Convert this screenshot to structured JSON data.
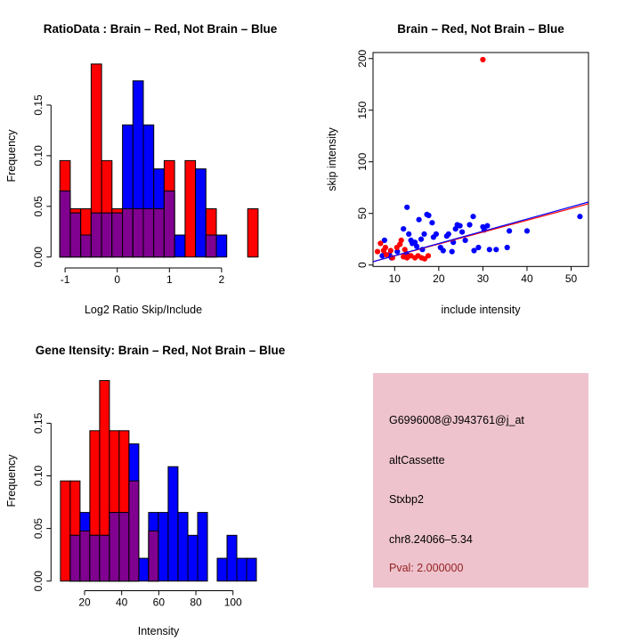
{
  "window": {
    "background": "#ffffff"
  },
  "colors": {
    "brain_red": "#ff0000",
    "not_brain_blue": "#0000ff",
    "overlap_purple": "#800090",
    "axis_black": "#000000",
    "info_background": "#eec3cd",
    "pval_text": "#941f1f"
  },
  "chart_data": [
    {
      "id": "ratio-hist",
      "type": "bar",
      "subtype": "overlaid-histogram",
      "title": "RatioData : Brain – Red, Not Brain – Blue",
      "xlabel": "Log2 Ratio Skip/Include",
      "ylabel": "Frequency",
      "bin_start": -1.1,
      "bin_width": 0.2,
      "xticks": [
        -1,
        0,
        1,
        2
      ],
      "yticks": [
        0,
        0.05,
        0.1,
        0.15
      ],
      "xlim": [
        -1.15,
        2.75
      ],
      "ylim": [
        0,
        0.195
      ],
      "grid": false,
      "series": [
        {
          "name": "Brain",
          "color": "#ff0000",
          "values": [
            0.0952,
            0.0476,
            0.0476,
            0.1905,
            0.0952,
            0.0476,
            0.0476,
            0.0476,
            0.0476,
            0.0476,
            0.0952,
            0,
            0.0952,
            0,
            0.0476,
            0,
            0,
            0,
            0.0476
          ]
        },
        {
          "name": "Not Brain",
          "color": "#0000ff",
          "values": [
            0.0652,
            0.0435,
            0.0217,
            0.0435,
            0.0435,
            0.0435,
            0.1304,
            0.1739,
            0.1304,
            0.087,
            0.0652,
            0.0217,
            0,
            0.087,
            0.0217,
            0.0217,
            0,
            0,
            0
          ]
        }
      ]
    },
    {
      "id": "scatter",
      "type": "scatter",
      "title": "Brain – Red, Not Brain – Blue",
      "xlabel": "include intensity",
      "ylabel": "skip intensity",
      "xticks": [
        10,
        20,
        30,
        40,
        50
      ],
      "yticks": [
        0,
        50,
        100,
        150,
        200
      ],
      "xlim": [
        5,
        54
      ],
      "ylim": [
        0,
        207
      ],
      "grid": false,
      "series": [
        {
          "name": "Brain",
          "color": "#ff0000",
          "points": [
            [
              6.8,
              21
            ],
            [
              6.1,
              13
            ],
            [
              7.9,
              17
            ],
            [
              8.1,
              10
            ],
            [
              9.1,
              14
            ],
            [
              9.5,
              7
            ],
            [
              11.2,
              20
            ],
            [
              11.5,
              24
            ],
            [
              12,
              8
            ],
            [
              12.3,
              15
            ],
            [
              12.8,
              7
            ],
            [
              13.7,
              9
            ],
            [
              14.6,
              7
            ],
            [
              15.3,
              9
            ],
            [
              16.1,
              7
            ],
            [
              16.8,
              6
            ],
            [
              17.6,
              9
            ],
            [
              7.5,
              14
            ],
            [
              13,
              8
            ],
            [
              10.5,
              17
            ],
            [
              30,
              199
            ]
          ]
        },
        {
          "name": "Not Brain",
          "color": "#0000ff",
          "points": [
            [
              7.2,
              9
            ],
            [
              7.7,
              24
            ],
            [
              8.8,
              10
            ],
            [
              9.3,
              7
            ],
            [
              10.6,
              13
            ],
            [
              12,
              35
            ],
            [
              12.7,
              11
            ],
            [
              12.8,
              56
            ],
            [
              13.2,
              30
            ],
            [
              13.7,
              24
            ],
            [
              14,
              21
            ],
            [
              14.6,
              22
            ],
            [
              15,
              18
            ],
            [
              15.5,
              44
            ],
            [
              16,
              25
            ],
            [
              16.3,
              15
            ],
            [
              16.7,
              30
            ],
            [
              17.3,
              49
            ],
            [
              17.7,
              48
            ],
            [
              18.5,
              41
            ],
            [
              18.8,
              27
            ],
            [
              19.4,
              30
            ],
            [
              20.4,
              17
            ],
            [
              21,
              14
            ],
            [
              21.8,
              28
            ],
            [
              22.2,
              30
            ],
            [
              23,
              13
            ],
            [
              23.3,
              22
            ],
            [
              23.8,
              35
            ],
            [
              24.2,
              39
            ],
            [
              24.8,
              38
            ],
            [
              25.3,
              32
            ],
            [
              26,
              24
            ],
            [
              27,
              39
            ],
            [
              27.8,
              47
            ],
            [
              28,
              14
            ],
            [
              29,
              17
            ],
            [
              30,
              37
            ],
            [
              30.3,
              34
            ],
            [
              31,
              38
            ],
            [
              31.5,
              15
            ],
            [
              33,
              15
            ],
            [
              35.5,
              17
            ],
            [
              36,
              33
            ],
            [
              40,
              33
            ],
            [
              52,
              47
            ]
          ]
        }
      ],
      "fit_lines": [
        {
          "name": "brain-fit",
          "color": "#ff0000",
          "x": [
            5.1,
            53.9
          ],
          "y": [
            3.3,
            59.3
          ]
        },
        {
          "name": "not-brain-fit",
          "color": "#0000ff",
          "x": [
            5.1,
            53.9
          ],
          "y": [
            3.3,
            61.0
          ]
        }
      ]
    },
    {
      "id": "gene-hist",
      "type": "bar",
      "subtype": "overlaid-histogram",
      "title": "Gene Itensity: Brain – Red, Not Brain – Blue",
      "xlabel": "Intensity",
      "ylabel": "Frequency",
      "bin_start": 7.0,
      "bin_width": 5.28,
      "xticks": [
        20,
        40,
        60,
        80,
        100
      ],
      "yticks": [
        0,
        0.05,
        0.1,
        0.15
      ],
      "xlim": [
        7,
        113
      ],
      "ylim": [
        0,
        0.195
      ],
      "grid": false,
      "series": [
        {
          "name": "Brain",
          "color": "#ff0000",
          "values": [
            0.0952,
            0.0952,
            0.0476,
            0.1429,
            0.1905,
            0.1429,
            0.1429,
            0.0952,
            0,
            0.0476,
            0,
            0,
            0,
            0,
            0,
            0,
            0,
            0,
            0,
            0
          ]
        },
        {
          "name": "Not Brain",
          "color": "#0000ff",
          "values": [
            0,
            0.0435,
            0.0652,
            0.0435,
            0.0435,
            0.0652,
            0.0652,
            0.1304,
            0.0217,
            0.0652,
            0.0652,
            0.1087,
            0.0652,
            0.0435,
            0.0652,
            0,
            0.0217,
            0.0435,
            0.0217,
            0.0217
          ]
        }
      ]
    }
  ],
  "info_panel": {
    "background": "#eec3cd",
    "probe_id": "G6996008@J943761@j_at",
    "event_type": "altCassette",
    "gene": "Stxbp2",
    "location": "chr8.24066–5.34",
    "pval": "Pval: 2.000000"
  }
}
